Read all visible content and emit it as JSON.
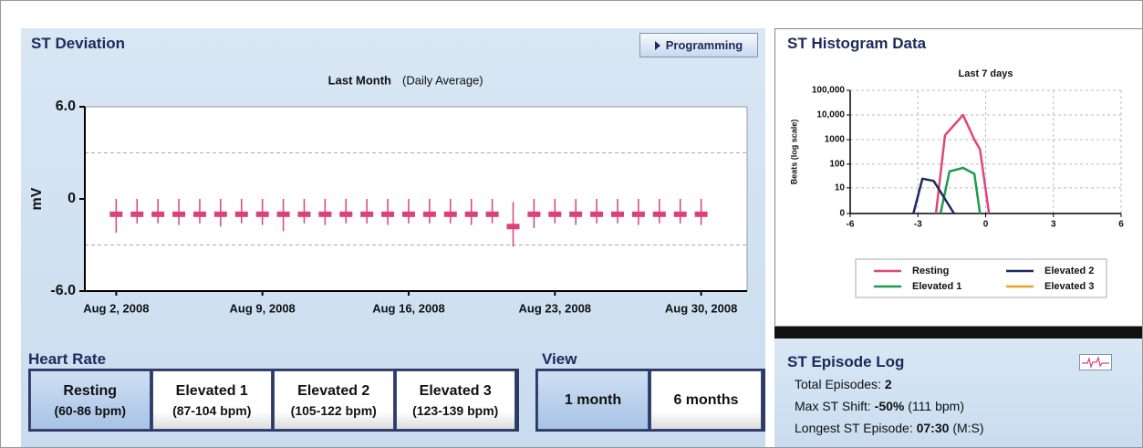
{
  "panels": {
    "deviation_title": "ST Deviation",
    "programming_button": "Programming",
    "histogram_title": "ST Histogram Data",
    "episode_title": "ST Episode Log"
  },
  "heart_rate": {
    "title": "Heart Rate",
    "buttons": [
      {
        "label": "Resting",
        "range": "(60-86 bpm)",
        "selected": true
      },
      {
        "label": "Elevated 1",
        "range": "(87-104 bpm)",
        "selected": false
      },
      {
        "label": "Elevated 2",
        "range": "(105-122 bpm)",
        "selected": false
      },
      {
        "label": "Elevated 3",
        "range": "(123-139 bpm)",
        "selected": false
      }
    ]
  },
  "view": {
    "title": "View",
    "buttons": [
      {
        "label": "1 month",
        "selected": true
      },
      {
        "label": "6 months",
        "selected": false
      }
    ]
  },
  "episode_log": {
    "items": [
      {
        "label": "Total Episodes:",
        "value": "2"
      },
      {
        "label": "Max ST Shift:",
        "value": "-50%",
        "extra": "(111 bpm)"
      },
      {
        "label": "Longest ST Episode:",
        "value": "07:30",
        "extra": "(M:S)"
      }
    ]
  },
  "chart_data": [
    {
      "type": "range",
      "title": "Last Month",
      "subtitle": "(Daily Average)",
      "y_label": "mV",
      "color": "#d9437a",
      "x": [
        2,
        3,
        4,
        5,
        6,
        7,
        8,
        9,
        10,
        11,
        12,
        13,
        14,
        15,
        16,
        17,
        18,
        19,
        20,
        21,
        22,
        23,
        24,
        25,
        26,
        27,
        28,
        29,
        30
      ],
      "values": [
        -1.0,
        -1.0,
        -1.0,
        -1.0,
        -1.0,
        -1.0,
        -1.0,
        -1.0,
        -1.0,
        -1.0,
        -1.0,
        -1.0,
        -1.0,
        -1.0,
        -1.0,
        -1.0,
        -1.0,
        -1.0,
        -1.0,
        -1.8,
        -1.0,
        -1.0,
        -1.0,
        -1.0,
        -1.0,
        -1.0,
        -1.0,
        -1.0,
        -1.0
      ],
      "high": [
        0,
        0,
        0,
        0,
        0,
        0,
        0,
        0,
        0,
        0,
        0,
        0,
        0,
        0,
        0,
        0,
        0,
        0,
        0,
        -0.2,
        0,
        0,
        0,
        0,
        0,
        0,
        0,
        0,
        0
      ],
      "low": [
        -2.2,
        -1.6,
        -1.6,
        -1.7,
        -1.6,
        -1.8,
        -1.6,
        -1.7,
        -2.1,
        -1.6,
        -1.7,
        -1.6,
        -1.6,
        -1.7,
        -1.6,
        -1.6,
        -1.6,
        -1.7,
        -1.6,
        -3.1,
        -1.9,
        -1.6,
        -1.7,
        -1.6,
        -1.6,
        -1.7,
        -1.6,
        -1.6,
        -1.7
      ],
      "xlim": [
        0.5,
        32.2
      ],
      "xticks": [
        {
          "value": 2,
          "label": "Aug 2, 2008"
        },
        {
          "value": 9,
          "label": "Aug 9, 2008"
        },
        {
          "value": 16,
          "label": "Aug 16, 2008"
        },
        {
          "value": 23,
          "label": "Aug 23, 2008"
        },
        {
          "value": 30,
          "label": "Aug 30, 2008"
        }
      ],
      "ylim": [
        -6,
        6
      ],
      "yticks": [
        {
          "value": 6,
          "label": "6.0"
        },
        0,
        {
          "value": -6,
          "label": "-6.0"
        }
      ],
      "dashed_gridlines": [
        3,
        -3
      ]
    },
    {
      "type": "line",
      "title": "Last 7 days",
      "y_label": "Beats (log scale)",
      "yscale": "symlog",
      "grid": true,
      "legend": "bottom",
      "xlim": [
        -6,
        6
      ],
      "xticks": [
        -6,
        -3,
        0,
        3,
        6
      ],
      "ylim": [
        0,
        100000
      ],
      "yticks": [
        0,
        10,
        100,
        1000,
        {
          "value": 10000,
          "label": "10,000"
        },
        {
          "value": 100000,
          "label": "100,000"
        }
      ],
      "series": [
        {
          "name": "Resting",
          "color": "#e0457b",
          "x": [
            -2.2,
            -1.8,
            -1.0,
            -0.5,
            -0.25,
            0.15
          ],
          "values": [
            0,
            1500,
            10000,
            1000,
            400,
            0
          ]
        },
        {
          "name": "Elevated 1",
          "color": "#1f9a4f",
          "x": [
            -2.0,
            -1.6,
            -1.0,
            -0.5,
            -0.25
          ],
          "values": [
            0,
            50,
            70,
            40,
            0
          ]
        },
        {
          "name": "Elevated 2",
          "color": "#1c2a5c",
          "x": [
            -3.2,
            -2.8,
            -2.3,
            -1.4
          ],
          "values": [
            0,
            25,
            20,
            0
          ]
        },
        {
          "name": "Elevated 3",
          "color": "#f0a020",
          "x": [],
          "values": []
        }
      ]
    }
  ]
}
